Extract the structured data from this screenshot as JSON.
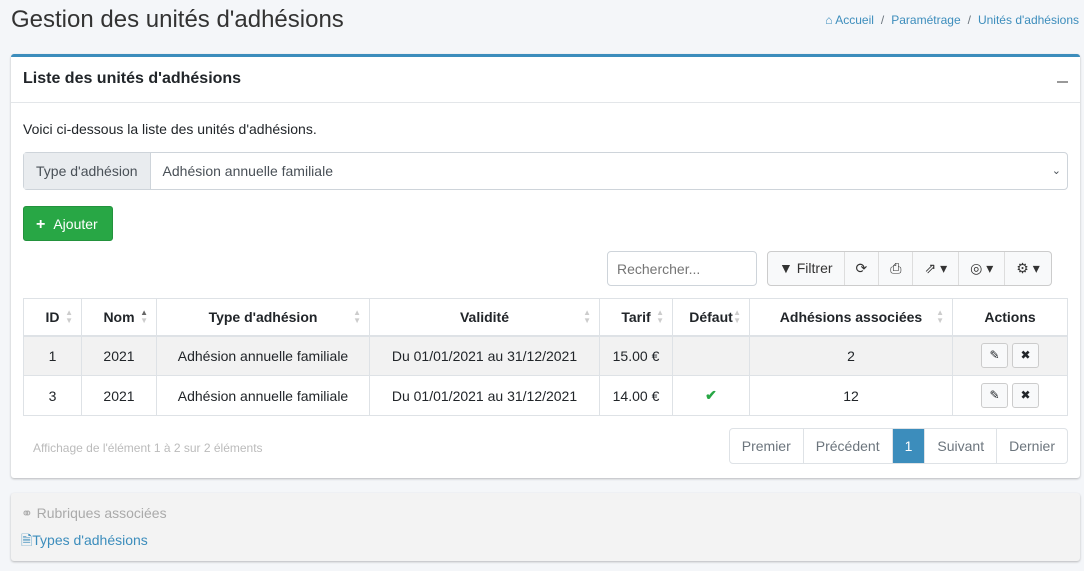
{
  "page": {
    "title": "Gestion des unités d'adhésions"
  },
  "breadcrumb": [
    {
      "label": "Accueil",
      "icon": "home-icon"
    },
    {
      "label": "Paramétrage"
    },
    {
      "label": "Unités d'adhésions"
    }
  ],
  "card": {
    "title": "Liste des unités d'adhésions",
    "intro": "Voici ci-dessous la liste des unités d'adhésions.",
    "filter": {
      "label": "Type d'adhésion",
      "value": "Adhésion annuelle familiale"
    },
    "add_label": "Ajouter",
    "search_placeholder": "Rechercher...",
    "toolbar": {
      "filter_label": "Filtrer"
    },
    "columns": [
      "ID",
      "Nom",
      "Type d'adhésion",
      "Validité",
      "Tarif",
      "Défaut",
      "Adhésions associées",
      "Actions"
    ],
    "rows": [
      {
        "id": "1",
        "nom": "2021",
        "type": "Adhésion annuelle familiale",
        "validite": "Du 01/01/2021 au 31/12/2021",
        "tarif": "15.00 €",
        "defaut": false,
        "assoc": "2"
      },
      {
        "id": "3",
        "nom": "2021",
        "type": "Adhésion annuelle familiale",
        "validite": "Du 01/01/2021 au 31/12/2021",
        "tarif": "14.00 €",
        "defaut": true,
        "assoc": "12"
      }
    ],
    "info": "Affichage de l'élément 1 à 2 sur 2 éléments",
    "pagination": [
      "Premier",
      "Précédent",
      "1",
      "Suivant",
      "Dernier"
    ],
    "current_page": "1"
  },
  "related": {
    "title": "Rubriques associées",
    "links": [
      "Types d'adhésions"
    ]
  },
  "colors": {
    "accent": "#3c8dbc",
    "success": "#28a745"
  }
}
